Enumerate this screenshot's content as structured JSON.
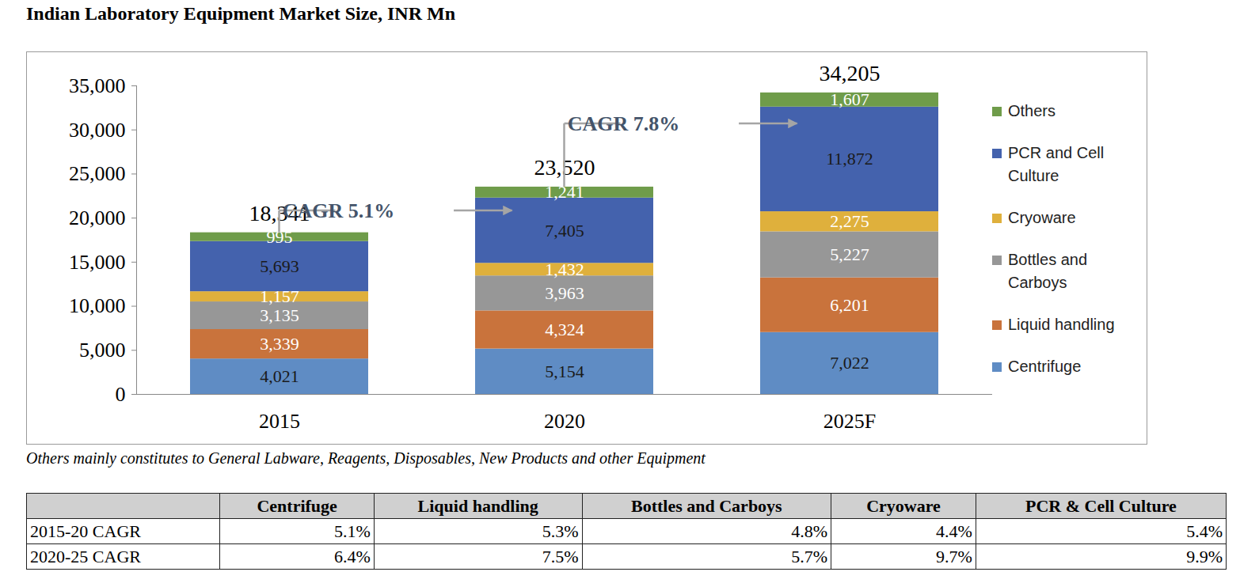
{
  "chart_data": {
    "type": "bar",
    "title": "Indian Laboratory Equipment Market Size, INR Mn",
    "categories": [
      "2015",
      "2020",
      "2025F"
    ],
    "series": [
      {
        "name": "Centrifuge",
        "color": "#5f8cc4",
        "values": [
          4021,
          5154,
          7022
        ],
        "value_labels": [
          "4,021",
          "5,154",
          "7,022"
        ]
      },
      {
        "name": "Liquid handling",
        "color": "#c9733c",
        "values": [
          3339,
          4324,
          6201
        ],
        "value_labels": [
          "3,339",
          "4,324",
          "6,201"
        ]
      },
      {
        "name": "Bottles and Carboys",
        "color": "#979797",
        "values": [
          3135,
          3963,
          5227
        ],
        "value_labels": [
          "3,135",
          "3,963",
          "5,227"
        ]
      },
      {
        "name": "Cryoware",
        "color": "#dfb03c",
        "values": [
          1157,
          1432,
          2275
        ],
        "value_labels": [
          "1,157",
          "1,432",
          "2,275"
        ]
      },
      {
        "name": "PCR and Cell Culture",
        "color": "#4462ad",
        "values": [
          5693,
          7405,
          11872
        ],
        "value_labels": [
          "5,693",
          "7,405",
          "11,872"
        ]
      },
      {
        "name": "Others",
        "color": "#6f9c4a",
        "values": [
          995,
          1241,
          1607
        ],
        "value_labels": [
          "995",
          "1,241",
          "1,607"
        ]
      }
    ],
    "totals": [
      18341,
      23520,
      34205
    ],
    "total_labels": [
      "18,341",
      "23,520",
      "34,205"
    ],
    "annotations": [
      {
        "text": "CAGR 5.1%",
        "from": "2015",
        "to": "2020"
      },
      {
        "text": "CAGR 7.8%",
        "from": "2020",
        "to": "2025F"
      }
    ],
    "ylim": [
      0,
      35000
    ],
    "yticks": [
      0,
      {
        "value": 5000,
        "label": "5,000"
      },
      {
        "value": 10000,
        "label": "10,000"
      },
      {
        "value": 15000,
        "label": "15,000"
      },
      {
        "value": 20000,
        "label": "20,000"
      },
      {
        "value": 25000,
        "label": "25,000"
      },
      {
        "value": 30000,
        "label": "30,000"
      },
      {
        "value": 35000,
        "label": "35,000"
      }
    ],
    "stacked": true,
    "data_labels": true,
    "grid": false,
    "legend": "right"
  },
  "caption": "Others mainly constitutes to General Labware, Reagents, Disposables, New Products and other Equipment",
  "table": {
    "columns": [
      "Centrifuge",
      "Liquid handling",
      "Bottles and Carboys",
      "Cryoware",
      "PCR & Cell Culture"
    ],
    "rows": [
      [
        "2015-20 CAGR",
        "5.1%",
        "5.3%",
        "4.8%",
        "4.4%",
        "5.4%"
      ],
      [
        "2020-25 CAGR",
        "6.4%",
        "7.5%",
        "5.7%",
        "9.7%",
        "9.9%"
      ]
    ]
  }
}
